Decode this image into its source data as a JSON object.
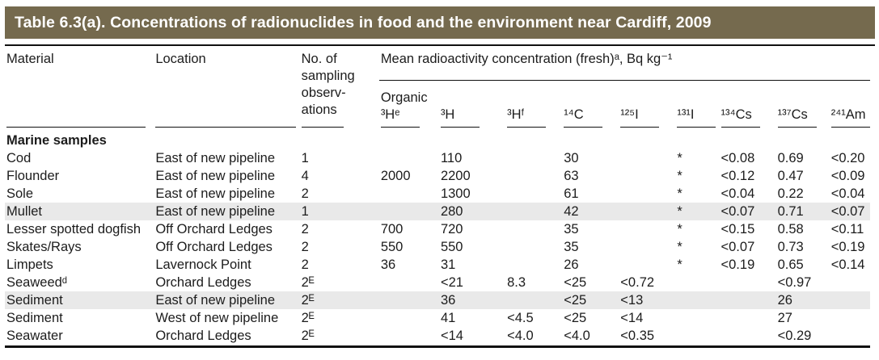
{
  "title": "Table 6.3(a). Concentrations of radionuclides in food and the environment near Cardiff, 2009",
  "colors": {
    "title_bar_background": "#756a4e",
    "title_text": "#ffffff",
    "shaded_row": "#e9e9e9",
    "rule": "#111111"
  },
  "table": {
    "columns": {
      "material": "Material",
      "location": "Location",
      "observations": "No. of\nsampling\nobserv-\nations",
      "group": "Mean radioactivity concentration (fresh)ᵃ, Bq kg⁻¹",
      "isotopes": [
        "Organic\n³Hᵉ",
        "³H",
        "³Hᶠ",
        "¹⁴C",
        "¹²⁵I",
        "¹³¹I",
        "¹³⁴Cs",
        "¹³⁷Cs",
        "²⁴¹Am"
      ]
    },
    "section": "Marine samples",
    "rows": [
      {
        "material": "Cod",
        "location": "East of new pipeline",
        "n": "1",
        "shaded": false,
        "values": [
          "",
          "110",
          "",
          "30",
          "",
          "*",
          "<0.08",
          "0.69",
          "<0.20"
        ]
      },
      {
        "material": "Flounder",
        "location": "East of new pipeline",
        "n": "4",
        "shaded": false,
        "values": [
          "2000",
          "2200",
          "",
          "63",
          "",
          "*",
          "<0.12",
          "0.47",
          "<0.09"
        ]
      },
      {
        "material": "Sole",
        "location": "East of new pipeline",
        "n": "2",
        "shaded": false,
        "values": [
          "",
          "1300",
          "",
          "61",
          "",
          "*",
          "<0.04",
          "0.22",
          "<0.04"
        ]
      },
      {
        "material": "Mullet",
        "location": "East of new pipeline",
        "n": "1",
        "shaded": true,
        "values": [
          "",
          "280",
          "",
          "42",
          "",
          "*",
          "<0.07",
          "0.71",
          "<0.07"
        ]
      },
      {
        "material": "Lesser spotted dogfish",
        "location": "Off Orchard Ledges",
        "n": "2",
        "shaded": false,
        "values": [
          "700",
          "720",
          "",
          "35",
          "",
          "*",
          "<0.15",
          "0.58",
          "<0.11"
        ]
      },
      {
        "material": "Skates/Rays",
        "location": "Off Orchard Ledges",
        "n": "2",
        "shaded": false,
        "values": [
          "550",
          "550",
          "",
          "35",
          "",
          "*",
          "<0.07",
          "0.73",
          "<0.19"
        ]
      },
      {
        "material": "Limpets",
        "location": "Lavernock Point",
        "n": "2",
        "shaded": false,
        "values": [
          "36",
          "31",
          "",
          "26",
          "",
          "*",
          "<0.19",
          "0.65",
          "<0.14"
        ]
      },
      {
        "material": "Seaweedᵈ",
        "location": "Orchard Ledges",
        "n": "2ᴱ",
        "shaded": false,
        "values": [
          "",
          "<21",
          "8.3",
          "<25",
          "<0.72",
          "",
          "",
          "<0.97",
          ""
        ]
      },
      {
        "material": "Sediment",
        "location": "East of new pipeline",
        "n": "2ᴱ",
        "shaded": true,
        "values": [
          "",
          "36",
          "",
          "<25",
          "<13",
          "",
          "",
          "26",
          ""
        ]
      },
      {
        "material": "Sediment",
        "location": "West of new pipeline",
        "n": "2ᴱ",
        "shaded": false,
        "values": [
          "",
          "41",
          "<4.5",
          "<25",
          "<14",
          "",
          "",
          "27",
          ""
        ]
      },
      {
        "material": "Seawater",
        "location": "Orchard Ledges",
        "n": "2ᴱ",
        "shaded": false,
        "values": [
          "",
          "<14",
          "<4.0",
          "<4.0",
          "<0.35",
          "",
          "",
          "<0.29",
          ""
        ]
      }
    ]
  }
}
